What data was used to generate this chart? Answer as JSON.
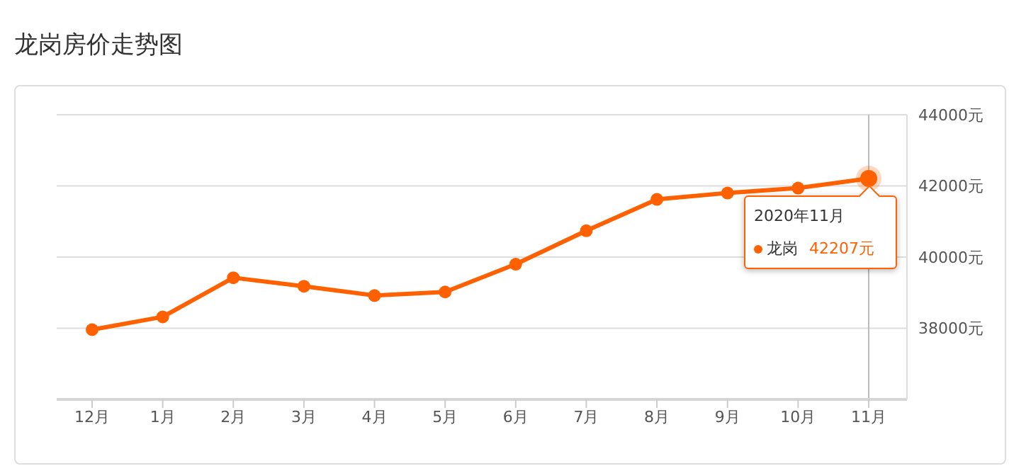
{
  "chart_data": {
    "type": "line",
    "title": "龙岗房价走势图",
    "categories": [
      "12月",
      "1月",
      "2月",
      "3月",
      "4月",
      "5月",
      "6月",
      "7月",
      "8月",
      "9月",
      "10月",
      "11月"
    ],
    "series": [
      {
        "name": "龙岗",
        "color": "#ff6000",
        "values": [
          37960,
          38320,
          39420,
          39180,
          38920,
          39020,
          39800,
          40740,
          41620,
          41800,
          41940,
          42207
        ],
        "value_labels": [
          null,
          null,
          null,
          null,
          null,
          null,
          null,
          null,
          null,
          null,
          null,
          "42207元"
        ]
      }
    ],
    "annotations": [
      {
        "text": "2020年11月",
        "x": "11月",
        "y": 42207
      }
    ],
    "ref_lines": [
      {
        "axis": "x",
        "value": "11月",
        "color": "#bbbbbb"
      }
    ],
    "ylim": [
      36000,
      44000
    ],
    "yticks": [
      {
        "value": 38000,
        "label": "38000元"
      },
      {
        "value": 40000,
        "label": "40000元"
      },
      {
        "value": 42000,
        "label": "42000元"
      },
      {
        "value": 44000,
        "label": "44000元"
      }
    ],
    "grid": "y",
    "marker": "circle",
    "line_style": "solid",
    "legend": "right"
  }
}
